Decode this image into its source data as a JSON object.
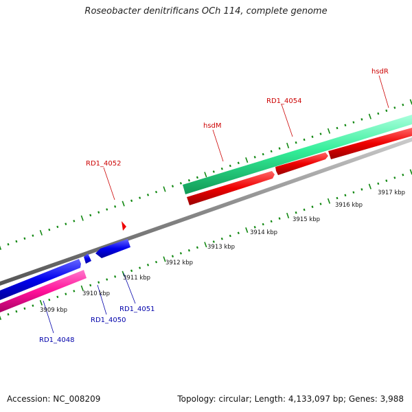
{
  "title": "Roseobacter denitrificans OCh 114, complete genome",
  "footer": {
    "accession": "Accession: NC_008209",
    "summary": "Topology: circular; Length: 4,133,097 bp; Genes: 3,988"
  },
  "colors": {
    "forward_gene": "#ee0000",
    "reverse_gene": "#0000ee",
    "forward_label": "#cc0000",
    "reverse_label": "#0000aa",
    "backbone": "#888888",
    "tick": "#118811",
    "band_teal": "#33ee99",
    "band_pink": "#ff1199"
  },
  "forward_labels": [
    "RD1_4052",
    "hsdM",
    "RD1_4054",
    "hsdR"
  ],
  "reverse_labels": [
    "RD1_4048",
    "RD1_4050",
    "RD1_4051"
  ],
  "scale_labels": [
    "3909 kbp",
    "3910 kbp",
    "3911 kbp",
    "3912 kbp",
    "3913 kbp",
    "3914 kbp",
    "3915 kbp",
    "3916 kbp",
    "3917 kbp"
  ]
}
